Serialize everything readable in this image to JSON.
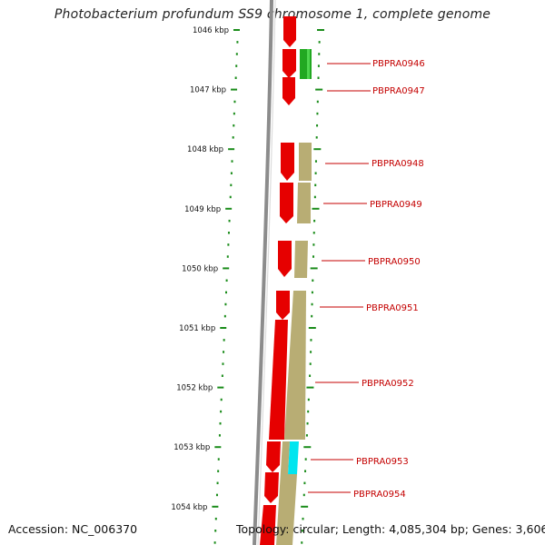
{
  "title": "Photobacterium profundum SS9 chromosome 1, complete genome",
  "footer": {
    "accession": "Accession: NC_006370",
    "summary": "Topology: circular; Length: 4,085,304 bp; Genes: 3,606"
  },
  "colors": {
    "background": "#ffffff",
    "backbone": "#8c8c8c",
    "scale_ticks": "#1a8c1a",
    "cds_forward": "#e60000",
    "feature_green": "#22a822",
    "feature_khaki": "#b8ad74",
    "feature_cyan": "#00e5ef",
    "label_text": "#c40000",
    "leader_line": "#c40000"
  },
  "scale_labels": [
    {
      "label": "1046 kbp",
      "value": 1046
    },
    {
      "label": "1047 kbp",
      "value": 1047
    },
    {
      "label": "1048 kbp",
      "value": 1048
    },
    {
      "label": "1049 kbp",
      "value": 1049
    },
    {
      "label": "1050 kbp",
      "value": 1050
    },
    {
      "label": "1051 kbp",
      "value": 1051
    },
    {
      "label": "1052 kbp",
      "value": 1052
    },
    {
      "label": "1053 kbp",
      "value": 1053
    },
    {
      "label": "1054 kbp",
      "value": 1054
    }
  ],
  "genes": [
    {
      "label": "PBPRA0946",
      "color": "green"
    },
    {
      "label": "PBPRA0947",
      "color": "none"
    },
    {
      "label": "PBPRA0948",
      "color": "khaki"
    },
    {
      "label": "PBPRA0949",
      "color": "khaki"
    },
    {
      "label": "PBPRA0950",
      "color": "khaki"
    },
    {
      "label": "PBPRA0951",
      "color": "khaki"
    },
    {
      "label": "PBPRA0952",
      "color": "khaki"
    },
    {
      "label": "PBPRA0953",
      "color": "cyan"
    },
    {
      "label": "PBPRA0954",
      "color": "khaki"
    }
  ]
}
